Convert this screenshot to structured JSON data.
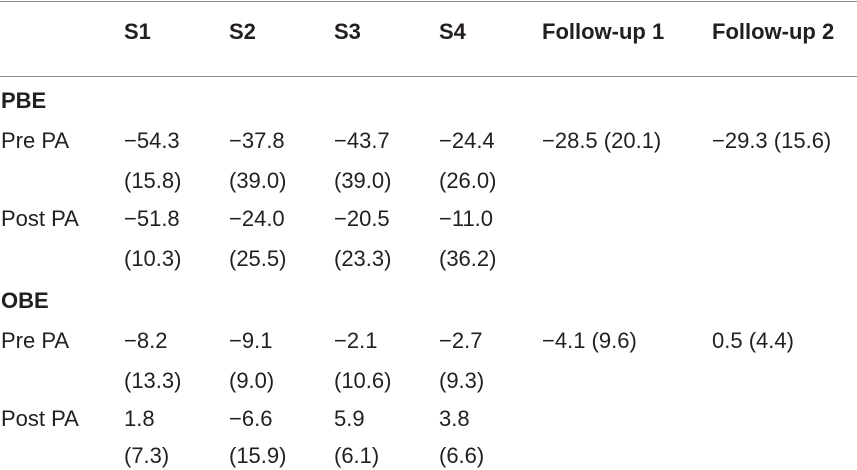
{
  "columns": [
    "",
    "S1",
    "S2",
    "S3",
    "S4",
    "Follow-up 1",
    "Follow-up 2"
  ],
  "sections": [
    {
      "title": "PBE",
      "rows": [
        {
          "label": "Pre PA",
          "means": [
            "−54.3",
            "−37.8",
            "−43.7",
            "−24.4",
            "−28.5 (20.1)",
            "−29.3 (15.6)"
          ],
          "sds": [
            "(15.8)",
            "(39.0)",
            "(39.0)",
            "(26.0)",
            "",
            ""
          ]
        },
        {
          "label": "Post PA",
          "means": [
            "−51.8",
            "−24.0",
            "−20.5",
            "−11.0",
            "",
            ""
          ],
          "sds": [
            "(10.3)",
            "(25.5)",
            "(23.3)",
            "(36.2)",
            "",
            ""
          ]
        }
      ]
    },
    {
      "title": "OBE",
      "rows": [
        {
          "label": "Pre PA",
          "means": [
            "−8.2",
            "−9.1",
            "−2.1",
            "−2.7",
            "−4.1 (9.6)",
            "0.5 (4.4)"
          ],
          "sds": [
            "(13.3)",
            "(9.0)",
            "(10.6)",
            "(9.3)",
            "",
            ""
          ]
        },
        {
          "label": "Post PA",
          "means": [
            "1.8",
            "−6.6",
            "5.9",
            "3.8",
            "",
            ""
          ],
          "sds": [
            "(7.3)",
            "(15.9)",
            "(6.1)",
            "(6.6)",
            "",
            ""
          ]
        }
      ]
    }
  ]
}
